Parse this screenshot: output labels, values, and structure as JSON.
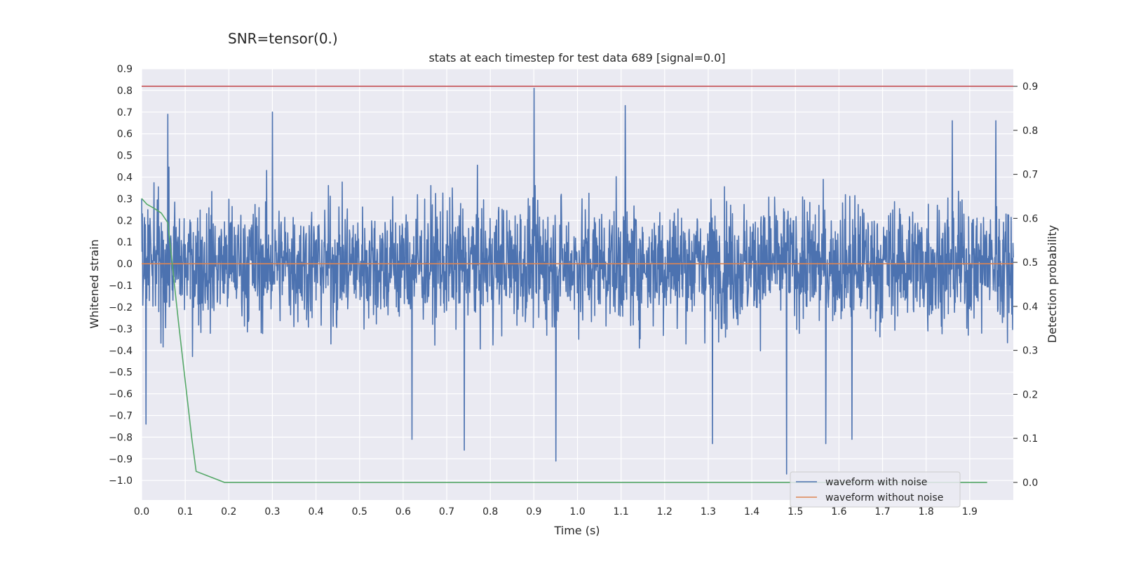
{
  "page_title": "SNR=tensor(0.)",
  "chart_data": {
    "type": "line",
    "title": "stats at each timestep for test data 689 [signal=0.0]",
    "xlabel": "Time (s)",
    "ylabel": "Whitened strain",
    "ylabel_right": "Detection probability",
    "xlim": [
      0.0,
      2.0
    ],
    "ylim": [
      -1.09,
      0.9
    ],
    "ylim_right": [
      -0.04,
      0.94
    ],
    "x_ticks": [
      0.0,
      0.1,
      0.2,
      0.3,
      0.4,
      0.5,
      0.6,
      0.7,
      0.8,
      0.9,
      1.0,
      1.1,
      1.2,
      1.3,
      1.4,
      1.5,
      1.6,
      1.7,
      1.8,
      1.9
    ],
    "x_tick_labels": [
      "0.0",
      "0.1",
      "0.2",
      "0.3",
      "0.4",
      "0.5",
      "0.6",
      "0.7",
      "0.8",
      "0.9",
      "1.0",
      "1.1",
      "1.2",
      "1.3",
      "1.4",
      "1.5",
      "1.6",
      "1.7",
      "1.8",
      "1.9"
    ],
    "y_ticks": [
      0.9,
      0.8,
      0.7,
      0.6,
      0.5,
      0.4,
      0.3,
      0.2,
      0.1,
      0.0,
      -0.1,
      -0.2,
      -0.3,
      -0.4,
      -0.5,
      -0.6,
      -0.7,
      -0.8,
      -0.9,
      -1.0
    ],
    "y_tick_labels": [
      "0.9",
      "0.8",
      "0.7",
      "0.6",
      "0.5",
      "0.4",
      "0.3",
      "0.2",
      "0.1",
      "0.0",
      "−0.1",
      "−0.2",
      "−0.3",
      "−0.4",
      "−0.5",
      "−0.6",
      "−0.7",
      "−0.8",
      "−0.9",
      "−1.0"
    ],
    "y_right_ticks": [
      0.9,
      0.8,
      0.7,
      0.6,
      0.5,
      0.4,
      0.3,
      0.2,
      0.1,
      0.0
    ],
    "y_right_tick_labels": [
      "0.9",
      "0.8",
      "0.7",
      "0.6",
      "0.5",
      "0.4",
      "0.3",
      "0.2",
      "0.1",
      "0.0"
    ],
    "grid": true,
    "legend_position": "bottom-right",
    "series": [
      {
        "name": "waveform with noise",
        "color": "#4c72b0",
        "axis": "left",
        "kind": "noise",
        "x_range": [
          0.0,
          2.0
        ],
        "sample_count": 2400,
        "amplitude_range": [
          -0.97,
          0.81
        ],
        "extremes": [
          [
            0.0,
            0.3
          ],
          [
            0.01,
            -0.74
          ],
          [
            0.06,
            0.69
          ],
          [
            0.3,
            0.7
          ],
          [
            0.62,
            -0.81
          ],
          [
            0.74,
            -0.86
          ],
          [
            0.9,
            0.81
          ],
          [
            0.95,
            -0.91
          ],
          [
            1.11,
            0.73
          ],
          [
            1.31,
            -0.83
          ],
          [
            1.48,
            -0.97
          ],
          [
            1.57,
            -0.83
          ],
          [
            1.63,
            -0.81
          ],
          [
            1.86,
            0.66
          ],
          [
            1.96,
            0.66
          ]
        ]
      },
      {
        "name": "waveform without noise",
        "color": "#dd8452",
        "axis": "left",
        "x": [
          0.0,
          2.0
        ],
        "y": [
          0.0,
          0.0
        ]
      },
      {
        "name": "detection probability",
        "color": "#55a868",
        "axis": "right",
        "in_legend": false,
        "x": [
          0.0,
          0.012,
          0.03,
          0.045,
          0.06,
          0.085,
          0.115,
          0.125,
          0.19,
          1.94
        ],
        "y": [
          0.645,
          0.632,
          0.622,
          0.612,
          0.59,
          0.36,
          0.1,
          0.025,
          0.0,
          0.0
        ]
      },
      {
        "name": "threshold",
        "color": "#c44e52",
        "axis": "right",
        "in_legend": false,
        "x": [
          0.0,
          2.0
        ],
        "y": [
          0.9,
          0.9
        ]
      }
    ]
  }
}
